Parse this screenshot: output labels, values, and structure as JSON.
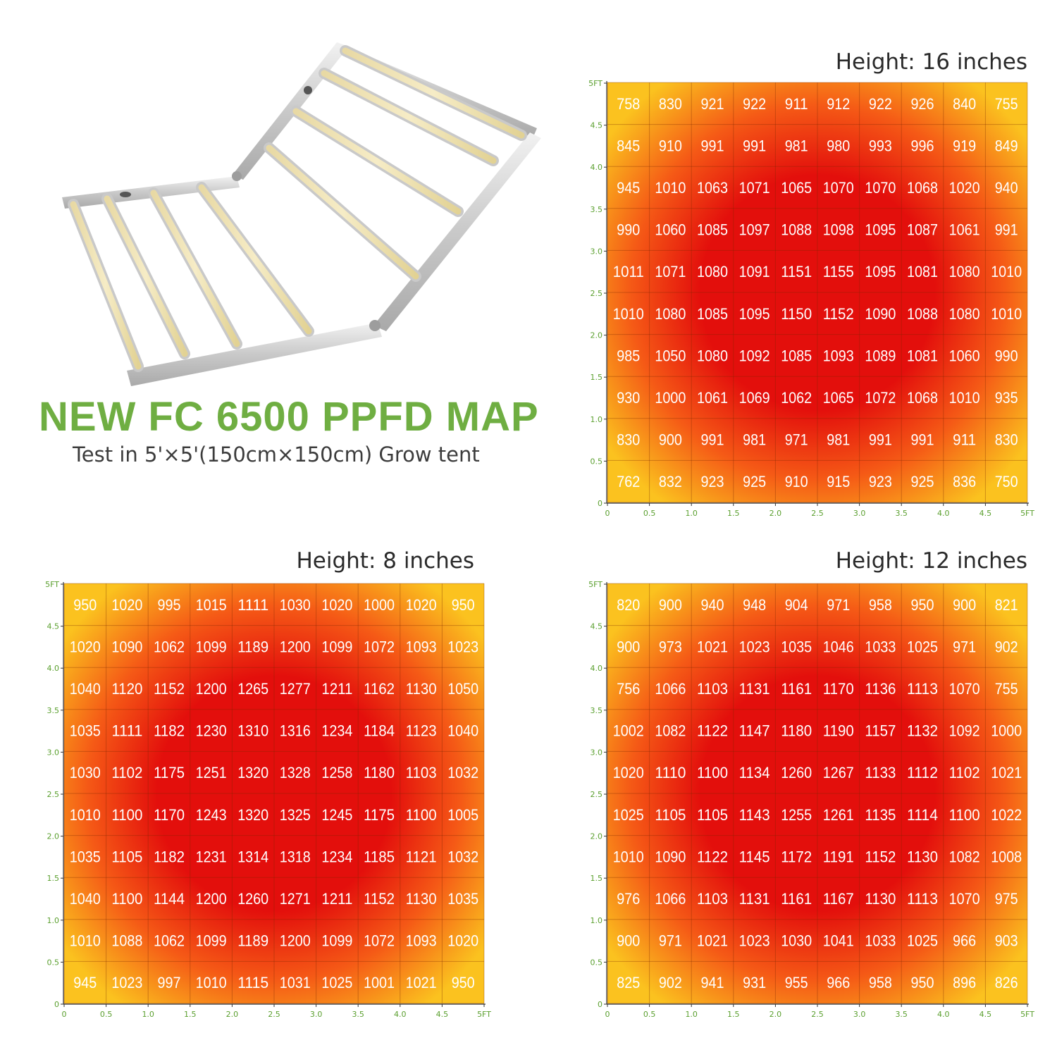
{
  "hero": {
    "title": "NEW FC 6500 PPFD MAP",
    "subtitle": "Test in 5'×5'(150cm×150cm) Grow tent"
  },
  "colors": {
    "hot": "#e30f0c",
    "mid": "#f55a16",
    "cool": "#f9a51c",
    "edge": "#fbc21f",
    "axis": "#5a9f2e",
    "title_green": "#6fae42"
  },
  "illustration": "foldable-led-grow-light-bars",
  "chart_data": [
    {
      "type": "heatmap",
      "title": "Height: 16 inches",
      "xlabel": "",
      "ylabel": "",
      "x_ticks": [
        "0",
        "0.5",
        "1.0",
        "1.5",
        "2.0",
        "2.5",
        "3.0",
        "3.5",
        "4.0",
        "4.5",
        "5FT"
      ],
      "y_ticks": [
        "0",
        "0.5",
        "1.0",
        "1.5",
        "2.0",
        "2.5",
        "3.0",
        "3.5",
        "4.0",
        "4.5",
        "5FT"
      ],
      "xlim": [
        0,
        5
      ],
      "ylim": [
        0,
        5
      ],
      "grid": true,
      "rows": [
        [
          758,
          830,
          921,
          922,
          911,
          912,
          922,
          926,
          840,
          755
        ],
        [
          845,
          910,
          991,
          991,
          981,
          980,
          993,
          996,
          919,
          849
        ],
        [
          945,
          1010,
          1063,
          1071,
          1065,
          1070,
          1070,
          1068,
          1020,
          940
        ],
        [
          990,
          1060,
          1085,
          1097,
          1088,
          1098,
          1095,
          1087,
          1061,
          991
        ],
        [
          1011,
          1071,
          1080,
          1091,
          1151,
          1155,
          1095,
          1081,
          1080,
          1010
        ],
        [
          1010,
          1080,
          1085,
          1095,
          1150,
          1152,
          1090,
          1088,
          1080,
          1010
        ],
        [
          985,
          1050,
          1080,
          1092,
          1085,
          1093,
          1089,
          1081,
          1060,
          990
        ],
        [
          930,
          1000,
          1061,
          1069,
          1062,
          1065,
          1072,
          1068,
          1010,
          935
        ],
        [
          830,
          900,
          991,
          981,
          971,
          981,
          991,
          991,
          911,
          830
        ],
        [
          762,
          832,
          923,
          925,
          910,
          915,
          923,
          925,
          836,
          750
        ]
      ]
    },
    {
      "type": "heatmap",
      "title": "Height: 8 inches",
      "xlabel": "",
      "ylabel": "",
      "x_ticks": [
        "0",
        "0.5",
        "1.0",
        "1.5",
        "2.0",
        "2.5",
        "3.0",
        "3.5",
        "4.0",
        "4.5",
        "5FT"
      ],
      "y_ticks": [
        "0",
        "0.5",
        "1.0",
        "1.5",
        "2.0",
        "2.5",
        "3.0",
        "3.5",
        "4.0",
        "4.5",
        "5FT"
      ],
      "xlim": [
        0,
        5
      ],
      "ylim": [
        0,
        5
      ],
      "grid": true,
      "rows": [
        [
          950,
          1020,
          995,
          1015,
          1111,
          1030,
          1020,
          1000,
          1020,
          950
        ],
        [
          1020,
          1090,
          1062,
          1099,
          1189,
          1200,
          1099,
          1072,
          1093,
          1023
        ],
        [
          1040,
          1120,
          1152,
          1200,
          1265,
          1277,
          1211,
          1162,
          1130,
          1050
        ],
        [
          1035,
          1111,
          1182,
          1230,
          1310,
          1316,
          1234,
          1184,
          1123,
          1040
        ],
        [
          1030,
          1102,
          1175,
          1251,
          1320,
          1328,
          1258,
          1180,
          1103,
          1032
        ],
        [
          1010,
          1100,
          1170,
          1243,
          1320,
          1325,
          1245,
          1175,
          1100,
          1005
        ],
        [
          1035,
          1105,
          1182,
          1231,
          1314,
          1318,
          1234,
          1185,
          1121,
          1032
        ],
        [
          1040,
          1100,
          1144,
          1200,
          1260,
          1271,
          1211,
          1152,
          1130,
          1035
        ],
        [
          1010,
          1088,
          1062,
          1099,
          1189,
          1200,
          1099,
          1072,
          1093,
          1020
        ],
        [
          945,
          1023,
          997,
          1010,
          1115,
          1031,
          1025,
          1001,
          1021,
          950
        ]
      ]
    },
    {
      "type": "heatmap",
      "title": "Height: 12 inches",
      "xlabel": "",
      "ylabel": "",
      "x_ticks": [
        "0",
        "0.5",
        "1.0",
        "1.5",
        "2.0",
        "2.5",
        "3.0",
        "3.5",
        "4.0",
        "4.5",
        "5FT"
      ],
      "y_ticks": [
        "0",
        "0.5",
        "1.0",
        "1.5",
        "2.0",
        "2.5",
        "3.0",
        "3.5",
        "4.0",
        "4.5",
        "5FT"
      ],
      "xlim": [
        0,
        5
      ],
      "ylim": [
        0,
        5
      ],
      "grid": true,
      "rows": [
        [
          820,
          900,
          940,
          948,
          904,
          971,
          958,
          950,
          900,
          821
        ],
        [
          900,
          973,
          1021,
          1023,
          1035,
          1046,
          1033,
          1025,
          971,
          902
        ],
        [
          756,
          1066,
          1103,
          1131,
          1161,
          1170,
          1136,
          1113,
          1070,
          755
        ],
        [
          1002,
          1082,
          1122,
          1147,
          1180,
          1190,
          1157,
          1132,
          1092,
          1000
        ],
        [
          1020,
          1110,
          1100,
          1134,
          1260,
          1267,
          1133,
          1112,
          1102,
          1021
        ],
        [
          1025,
          1105,
          1105,
          1143,
          1255,
          1261,
          1135,
          1114,
          1100,
          1022
        ],
        [
          1010,
          1090,
          1122,
          1145,
          1172,
          1191,
          1152,
          1130,
          1082,
          1008
        ],
        [
          976,
          1066,
          1103,
          1131,
          1161,
          1167,
          1130,
          1113,
          1070,
          975
        ],
        [
          900,
          971,
          1021,
          1023,
          1030,
          1041,
          1033,
          1025,
          966,
          903
        ],
        [
          825,
          902,
          941,
          931,
          955,
          966,
          958,
          950,
          896,
          826
        ]
      ]
    }
  ]
}
